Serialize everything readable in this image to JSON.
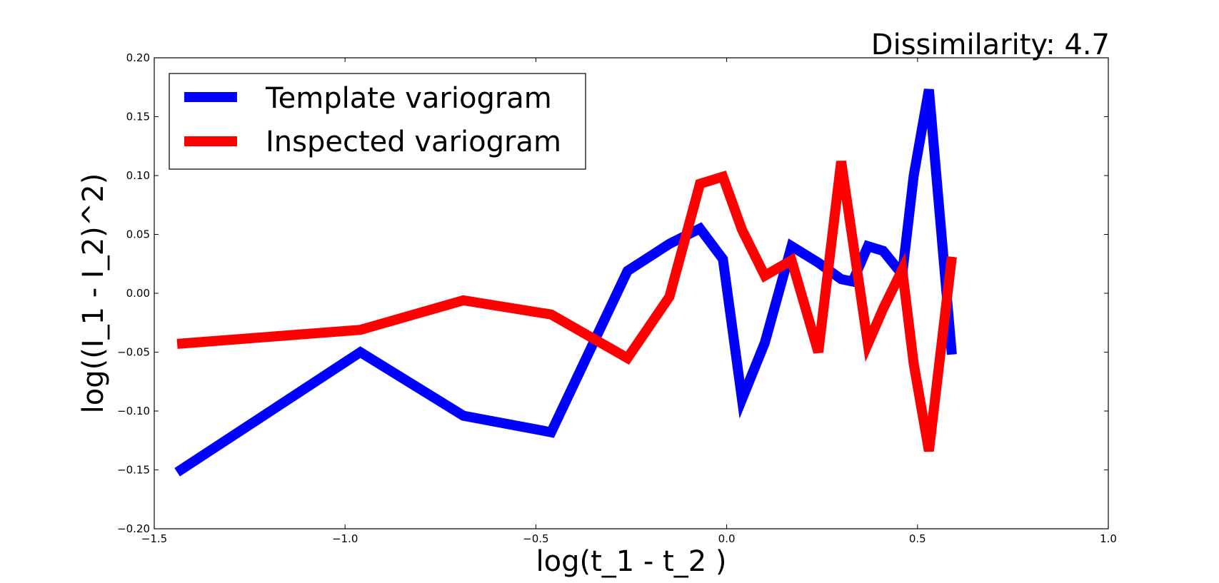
{
  "chart_data": {
    "type": "line",
    "title": "Dissimilarity: 4.7",
    "xlabel": "log(t_1 - t_2 )",
    "ylabel": "log((I_1 - I_2)^2)",
    "xlim": [
      -1.5,
      1.0
    ],
    "ylim": [
      -0.2,
      0.2
    ],
    "xticks": [
      -1.5,
      -1.0,
      -0.5,
      0.0,
      0.5,
      1.0
    ],
    "xtick_labels": [
      "−1.5",
      "−1.0",
      "−0.5",
      "0.0",
      "0.5",
      "1.0"
    ],
    "yticks": [
      -0.2,
      -0.15,
      -0.1,
      -0.05,
      0.0,
      0.05,
      0.1,
      0.15,
      0.2
    ],
    "ytick_labels": [
      "−0.20",
      "−0.15",
      "−0.10",
      "−0.05",
      "0.00",
      "0.05",
      "0.10",
      "0.15",
      "0.20"
    ],
    "grid": false,
    "legend_position": "top-left",
    "series": [
      {
        "name": "Template variogram",
        "color": "#0000ff",
        "x": [
          -1.44,
          -0.96,
          -0.69,
          -0.46,
          -0.26,
          -0.15,
          -0.07,
          -0.01,
          0.04,
          0.1,
          0.17,
          0.24,
          0.3,
          0.33,
          0.37,
          0.41,
          0.46,
          0.49,
          0.53,
          0.59
        ],
        "y": [
          -0.152,
          -0.05,
          -0.104,
          -0.118,
          0.019,
          0.042,
          0.055,
          0.029,
          -0.09,
          -0.042,
          0.04,
          0.026,
          0.012,
          0.01,
          0.04,
          0.036,
          0.016,
          0.1,
          0.173,
          -0.052
        ]
      },
      {
        "name": "Inspected variogram",
        "color": "#ff0000",
        "x": [
          -1.44,
          -0.96,
          -0.69,
          -0.46,
          -0.26,
          -0.15,
          -0.07,
          -0.01,
          0.04,
          0.1,
          0.17,
          0.24,
          0.3,
          0.37,
          0.41,
          0.46,
          0.49,
          0.53,
          0.59
        ],
        "y": [
          -0.043,
          -0.031,
          -0.006,
          -0.018,
          -0.055,
          -0.003,
          0.093,
          0.099,
          0.054,
          0.015,
          0.028,
          -0.05,
          0.112,
          -0.043,
          -0.013,
          0.02,
          -0.06,
          -0.134,
          0.031
        ]
      }
    ]
  }
}
